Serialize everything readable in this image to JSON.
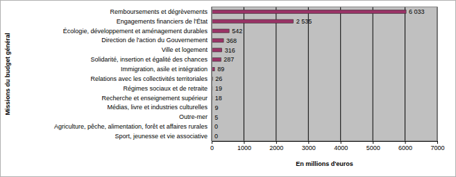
{
  "chart_data": {
    "type": "bar",
    "orientation": "horizontal",
    "x_label": "En millions d'euros",
    "y_label": "Missions du budget général",
    "categories": [
      "Remboursements et dégrèvements",
      "Engagements financiers de l'État",
      "Écologie, développement et aménagement durables",
      "Direction de l'action du Gouvernement",
      "Ville et logement",
      "Solidarité, insertion et égalité des chances",
      "Immigration, asile et intégration",
      "Relations avec les collectivités territoriales",
      "Régimes sociaux et de retraite",
      "Recherche et enseignement supérieur",
      "Médias, livre et industries culturelles",
      "Outre-mer",
      "Agriculture, pêche, alimentation, forêt et affaires rurales",
      "Sport, jeunesse et vie associative"
    ],
    "values": [
      6033,
      2535,
      542,
      368,
      316,
      287,
      89,
      26,
      19,
      18,
      9,
      5,
      0,
      0
    ],
    "value_labels": [
      "6 033",
      "2 535",
      "542",
      "368",
      "316",
      "287",
      "89",
      "26",
      "19",
      "18",
      "9",
      "5",
      "0",
      "0"
    ],
    "data_labels": true,
    "color": "#993366",
    "xlim": [
      0,
      7000
    ],
    "xticks": [
      0,
      1000,
      2000,
      3000,
      4000,
      5000,
      6000,
      7000
    ],
    "grid": true
  }
}
